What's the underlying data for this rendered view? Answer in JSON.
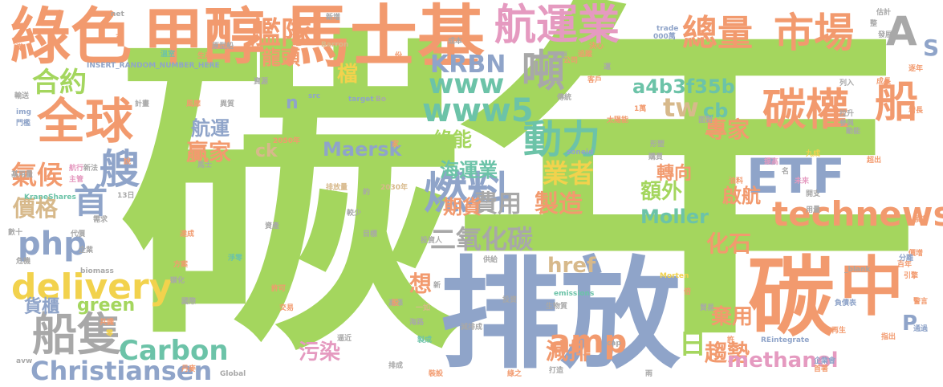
{
  "palette": {
    "green": "#a4d65e",
    "orange": "#f29a6e",
    "blue": "#8fa4c9",
    "teal": "#6cc3a8",
    "tan": "#d7b98b",
    "pink": "#e59ac0",
    "yellow": "#f2d24d",
    "gray": "#a8a8a8"
  },
  "words": [
    {
      "text": "碳"
    },
    {
      "text": "年"
    },
    {
      "text": "排放"
    },
    {
      "text": "碳"
    },
    {
      "text": "中"
    },
    {
      "text": "綠色"
    },
    {
      "text": "甲醇"
    },
    {
      "text": "馬士基"
    },
    {
      "text": "航運業"
    },
    {
      "text": "市場"
    },
    {
      "text": "A"
    },
    {
      "text": "S"
    },
    {
      "text": "全球"
    },
    {
      "text": "合約"
    },
    {
      "text": "艦隊"
    },
    {
      "text": "總量"
    },
    {
      "text": "噸"
    },
    {
      "text": "KRBN"
    },
    {
      "text": "www"
    },
    {
      "text": "www5"
    },
    {
      "text": "碳權"
    },
    {
      "text": "船"
    },
    {
      "text": "tw"
    },
    {
      "text": "ETF"
    },
    {
      "text": "technews"
    },
    {
      "text": "燃料"
    },
    {
      "text": "動力"
    },
    {
      "text": "艘"
    },
    {
      "text": "首"
    },
    {
      "text": "php"
    },
    {
      "text": "delivery"
    },
    {
      "text": "船隻"
    },
    {
      "text": "Carbon"
    },
    {
      "text": "Christiansen"
    },
    {
      "text": "氣候"
    },
    {
      "text": "價格"
    },
    {
      "text": "業者"
    },
    {
      "text": "費用"
    },
    {
      "text": "製造"
    },
    {
      "text": "期貨"
    },
    {
      "text": "二氧化碳"
    },
    {
      "text": "a4b3f35b"
    },
    {
      "text": "綠能"
    },
    {
      "text": "贏家"
    },
    {
      "text": "航運"
    },
    {
      "text": "amp"
    },
    {
      "text": "日"
    },
    {
      "text": "趨勢"
    },
    {
      "text": "減排"
    },
    {
      "text": "化石"
    },
    {
      "text": "專家"
    },
    {
      "text": "龍頭"
    },
    {
      "text": "檔"
    },
    {
      "text": "海運業"
    },
    {
      "text": "Maersk"
    },
    {
      "text": "Moller"
    },
    {
      "text": "methanol"
    },
    {
      "text": "污染"
    },
    {
      "text": "想"
    },
    {
      "text": "貨櫃"
    },
    {
      "text": "green"
    },
    {
      "text": "href"
    },
    {
      "text": "額外"
    },
    {
      "text": "轉向"
    },
    {
      "text": "啟航"
    },
    {
      "text": "棄用"
    },
    {
      "text": "P"
    },
    {
      "text": "cb"
    },
    {
      "text": "n"
    },
    {
      "text": "ck"
    },
    {
      "text": "INSERT_RANDOM_NUMBER_HERE"
    },
    {
      "text": "net"
    },
    {
      "text": "trade"
    },
    {
      "text": "000萬"
    },
    {
      "text": "估計"
    },
    {
      "text": "新增"
    },
    {
      "text": "Barron"
    },
    {
      "text": "成本"
    },
    {
      "text": "溫室"
    },
    {
      "text": "生產"
    },
    {
      "text": "原型船"
    },
    {
      "text": "target"
    },
    {
      "text": "Bo"
    },
    {
      "text": "src"
    },
    {
      "text": "img"
    },
    {
      "text": "計畫"
    },
    {
      "text": "輸送"
    },
    {
      "text": "門檻"
    },
    {
      "text": "2050年"
    },
    {
      "text": "排放量"
    },
    {
      "text": "2030年"
    },
    {
      "text": "zoneid"
    },
    {
      "text": "Global"
    },
    {
      "text": "avw"
    },
    {
      "text": "KraneShares"
    },
    {
      "text": "biomass"
    },
    {
      "text": "emissions"
    },
    {
      "text": "Morten"
    },
    {
      "text": "REintegrate"
    },
    {
      "text": "_blank"
    },
    {
      "text": "cap"
    },
    {
      "text": "投資人"
    },
    {
      "text": "供給"
    },
    {
      "text": "國際"
    },
    {
      "text": "企業"
    },
    {
      "text": "危機"
    },
    {
      "text": "需求"
    },
    {
      "text": "代價"
    },
    {
      "text": "數十"
    },
    {
      "text": "淨零"
    },
    {
      "text": "許可"
    },
    {
      "text": "交易"
    },
    {
      "text": "海路"
    },
    {
      "text": "減排成"
    },
    {
      "text": "排成"
    },
    {
      "text": "打造"
    },
    {
      "text": "綠之"
    },
    {
      "text": "裝設"
    },
    {
      "text": "丹麥"
    },
    {
      "text": "雨"
    },
    {
      "text": "首著"
    },
    {
      "text": "企業會"
    },
    {
      "text": "再生"
    },
    {
      "text": "指出"
    },
    {
      "text": "通過"
    },
    {
      "text": "警言"
    },
    {
      "text": "負債表"
    },
    {
      "text": "貿易"
    },
    {
      "text": "倍"
    },
    {
      "text": "投資"
    },
    {
      "text": "一如"
    },
    {
      "text": "高漲"
    },
    {
      "text": "生物質"
    },
    {
      "text": "逼近"
    },
    {
      "text": "製成"
    },
    {
      "text": "方案"
    },
    {
      "text": "碳化"
    },
    {
      "text": "達成"
    },
    {
      "text": "資產"
    },
    {
      "text": "目標"
    },
    {
      "text": "傳統"
    },
    {
      "text": "公司"
    },
    {
      "text": "客戶"
    },
    {
      "text": "太陽能"
    },
    {
      "text": "1萬"
    },
    {
      "text": "面對"
    },
    {
      "text": "參與"
    },
    {
      "text": "拉升"
    },
    {
      "text": "列入"
    },
    {
      "text": "動能"
    },
    {
      "text": "成長"
    },
    {
      "text": "發展"
    },
    {
      "text": "逐年"
    },
    {
      "text": "增長"
    },
    {
      "text": "超出"
    },
    {
      "text": "開支"
    },
    {
      "text": "用量"
    },
    {
      "text": "名"
    },
    {
      "text": "未來"
    },
    {
      "text": "九成"
    },
    {
      "text": "油料"
    },
    {
      "text": "提高"
    },
    {
      "text": "新法"
    },
    {
      "text": "航行"
    },
    {
      "text": "主管"
    },
    {
      "text": "基用量"
    },
    {
      "text": "13日"
    },
    {
      "text": "共識"
    },
    {
      "text": "零"
    },
    {
      "text": "形塑"
    },
    {
      "text": "購買"
    },
    {
      "text": "運"
    },
    {
      "text": "追蹤"
    },
    {
      "text": "價增"
    },
    {
      "text": "百年"
    },
    {
      "text": "引擎"
    },
    {
      "text": "分離"
    },
    {
      "text": "領導"
    },
    {
      "text": "異質"
    },
    {
      "text": "馬士"
    },
    {
      "text": "資源"
    },
    {
      "text": "風靡"
    },
    {
      "text": "較少"
    },
    {
      "text": "約"
    },
    {
      "text": "家"
    },
    {
      "text": "股"
    },
    {
      "text": "新"
    },
    {
      "text": "決心"
    },
    {
      "text": "正"
    },
    {
      "text": "滿"
    },
    {
      "text": "整"
    },
    {
      "text": "更"
    },
    {
      "text": "份"
    },
    {
      "text": "說"
    },
    {
      "text": "許"
    }
  ]
}
